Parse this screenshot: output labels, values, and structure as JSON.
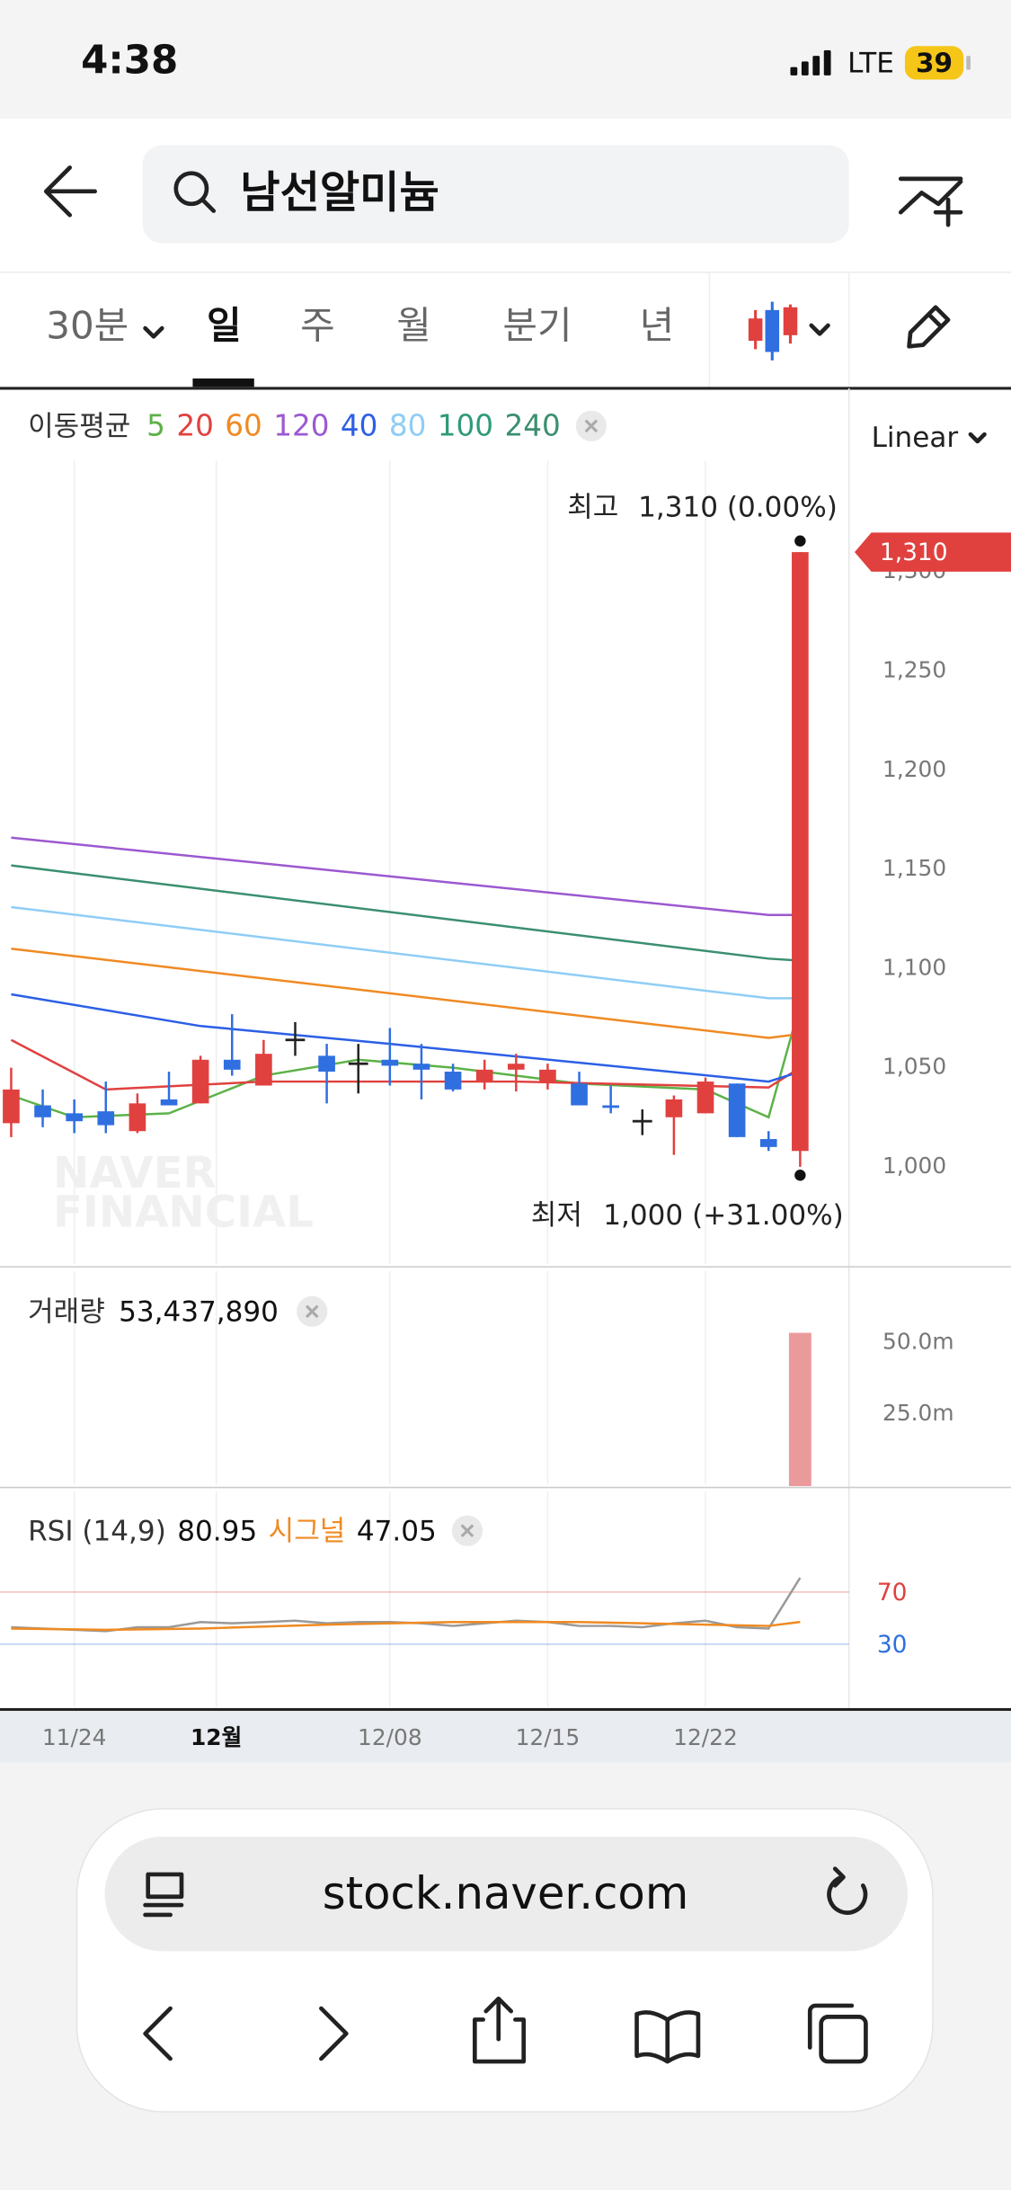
{
  "status_bar": {
    "time": "4:38",
    "network": "LTE",
    "battery": "39"
  },
  "search": {
    "query": "남선알미늄"
  },
  "tabs": [
    "30분",
    "일",
    "주",
    "월",
    "분기",
    "년"
  ],
  "active_tab": 1,
  "chart_data": {
    "type": "candlestick",
    "indicator_label": "이동평균",
    "scale_label": "Linear",
    "watermark": [
      "NAVER",
      "FINANCIAL"
    ],
    "high_label": "최고",
    "high_value": 1310,
    "high_value_label": "1,310 (0.00%)",
    "low_label": "최저",
    "low_value": 1000,
    "low_value_label": "1,000 (+31.00%)",
    "last_price": {
      "value": 1310,
      "label": "1,310"
    },
    "up_color": "#e0413f",
    "down_color": "#2f6fe0",
    "flat_color": "#222222",
    "ohlc": {
      "open": [
        1022,
        1031,
        1027,
        1028,
        1018,
        1034,
        1032,
        1054,
        1041,
        1064,
        1056,
        1052,
        1054,
        1052,
        1048,
        1043,
        1049,
        1043,
        1042,
        1031,
        1023,
        1025,
        1027,
        1042,
        1014,
        1008
      ],
      "high": [
        1050,
        1039,
        1034,
        1043,
        1037,
        1048,
        1056,
        1077,
        1064,
        1073,
        1062,
        1062,
        1070,
        1062,
        1052,
        1054,
        1057,
        1052,
        1048,
        1041,
        1029,
        1036,
        1045,
        1042,
        1018,
        1310
      ],
      "low": [
        1015,
        1020,
        1017,
        1017,
        1017,
        1031,
        1032,
        1046,
        1041,
        1056,
        1032,
        1037,
        1041,
        1034,
        1038,
        1039,
        1038,
        1039,
        1031,
        1027,
        1016,
        1006,
        1027,
        1015,
        1008,
        1000
      ],
      "close": [
        1039,
        1025,
        1023,
        1021,
        1032,
        1031,
        1054,
        1049,
        1057,
        1064,
        1048,
        1052,
        1051,
        1049,
        1039,
        1049,
        1052,
        1049,
        1031,
        1030,
        1023,
        1034,
        1043,
        1015,
        1010,
        1310
      ]
    },
    "ylim": [
      951,
      1356
    ],
    "yticks": [
      {
        "value": 1000,
        "label": "1,000"
      },
      {
        "value": 1050,
        "label": "1,050"
      },
      {
        "value": 1100,
        "label": "1,100"
      },
      {
        "value": 1150,
        "label": "1,150"
      },
      {
        "value": 1200,
        "label": "1,200"
      },
      {
        "value": 1250,
        "label": "1,250"
      },
      {
        "value": 1300,
        "label": "1,300"
      }
    ],
    "xticks": [
      {
        "value": 2,
        "label": "11/24"
      },
      {
        "value": 6.5,
        "label": "12월"
      },
      {
        "value": 12,
        "label": "12/08"
      },
      {
        "value": 17,
        "label": "12/15"
      },
      {
        "value": 22,
        "label": "12/22"
      }
    ],
    "ma_series": [
      {
        "name": "5",
        "color": "#5cb247",
        "x": [
          0,
          2,
          5,
          8,
          11,
          14,
          18,
          22,
          24,
          25
        ],
        "values": [
          1036,
          1025,
          1027,
          1046,
          1054,
          1050,
          1042,
          1039,
          1025,
          1082
        ]
      },
      {
        "name": "20",
        "color": "#e0413f",
        "x": [
          0,
          3,
          8,
          16,
          24,
          25
        ],
        "values": [
          1064,
          1039,
          1043,
          1043,
          1040,
          1050
        ]
      },
      {
        "name": "60",
        "color": "#ef8a22",
        "x": [
          0,
          24,
          25
        ],
        "values": [
          1110,
          1065,
          1067
        ]
      },
      {
        "name": "120",
        "color": "#9b59d0",
        "x": [
          0,
          24,
          25
        ],
        "values": [
          1166,
          1127,
          1127
        ]
      },
      {
        "name": "40",
        "color": "#2c5fe6",
        "x": [
          0,
          6,
          12,
          24,
          25
        ],
        "values": [
          1087,
          1071,
          1062,
          1043,
          1048
        ]
      },
      {
        "name": "80",
        "color": "#8fcdf5",
        "x": [
          0,
          24,
          25
        ],
        "values": [
          1131,
          1085,
          1085
        ]
      },
      {
        "name": "100",
        "color": "#2e9a7a"
      },
      {
        "name": "240",
        "color": "#3a8f6f",
        "x": [
          0,
          24,
          25
        ],
        "values": [
          1152,
          1105,
          1104
        ]
      }
    ],
    "volume": {
      "label": "거래량",
      "color": "#eb9a9c",
      "x": [
        25
      ],
      "values": [
        53437890
      ],
      "value_labels": [
        "53,437,890"
      ],
      "ylim": [
        0,
        75000000
      ],
      "yticks": [
        {
          "value": 25000000,
          "label": "25.0m"
        },
        {
          "value": 50000000,
          "label": "50.0m"
        }
      ]
    },
    "rsi": {
      "label": "RSI (14,9)",
      "color": "#999999",
      "values": [
        43,
        42,
        41,
        40,
        43,
        43,
        47,
        46,
        47,
        48,
        46,
        47,
        47,
        46,
        44,
        46,
        48,
        47,
        44,
        44,
        43,
        46,
        48,
        43,
        42,
        80.95
      ],
      "signal": {
        "name": "시그널",
        "color": "#ef8a22",
        "x": [
          0,
          3,
          6,
          10,
          14,
          18,
          22,
          24,
          25
        ],
        "values": [
          42,
          41,
          42,
          45,
          47,
          47,
          45,
          44,
          47.05
        ]
      },
      "ylim": [
        -18,
        147
      ],
      "yticks": [
        30,
        70
      ],
      "tick_colors": [
        "#2f6fe0",
        "#e0413f"
      ]
    }
  },
  "browser": {
    "url": "stock.naver.com"
  }
}
